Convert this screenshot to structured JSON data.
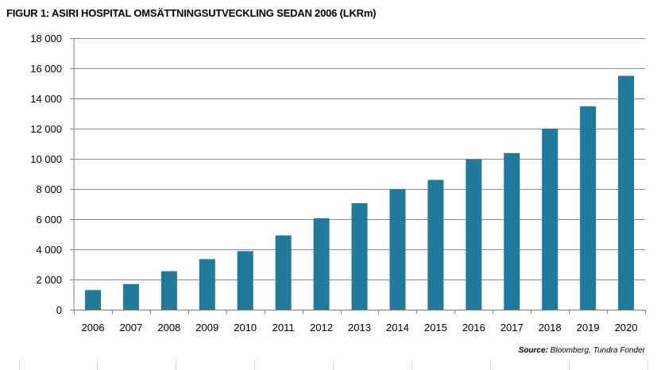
{
  "title": "FIGUR 1: ASIRI HOSPITAL OMSÄTTNINGSUTVECKLING SEDAN 2006 (LKRm)",
  "source_label": "Source:",
  "source_text": "Bloomberg, Tundra Fonder",
  "colors": {
    "bar": "#1f7a9b",
    "grid": "#8c8c8c",
    "axis": "#7f7f7f"
  },
  "chart_data": {
    "type": "bar",
    "title": "FIGUR 1: ASIRI HOSPITAL OMSÄTTNINGSUTVECKLING SEDAN 2006 (LKRm)",
    "xlabel": "",
    "ylabel": "",
    "ylim": [
      0,
      18000
    ],
    "grid": true,
    "legend": "none",
    "yticks": [
      0,
      2000,
      4000,
      6000,
      8000,
      10000,
      12000,
      14000,
      16000,
      18000
    ],
    "ytick_labels": [
      "0",
      "2 000",
      "4 000",
      "6 000",
      "8 000",
      "10 000",
      "12 000",
      "14 000",
      "16 000",
      "18 000"
    ],
    "categories": [
      "2006",
      "2007",
      "2008",
      "2009",
      "2010",
      "2011",
      "2012",
      "2013",
      "2014",
      "2015",
      "2016",
      "2017",
      "2018",
      "2019",
      "2020"
    ],
    "values": [
      1300,
      1700,
      2550,
      3350,
      3880,
      4920,
      6060,
      7060,
      7980,
      8600,
      9960,
      10380,
      12000,
      13480,
      15500
    ]
  }
}
